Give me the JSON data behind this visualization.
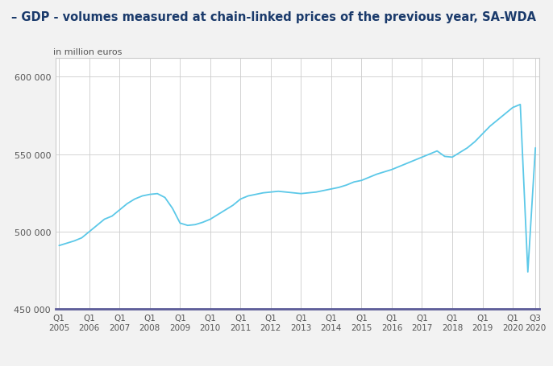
{
  "title": "– GDP - volumes measured at chain-linked prices of the previous year, SA-WDA",
  "ylabel": "in million euros",
  "background_color": "#f2f2f2",
  "plot_background": "#ffffff",
  "line_color": "#5bc8e8",
  "axis_line_color": "#5c5c99",
  "grid_color": "#cccccc",
  "title_color": "#1a3a6b",
  "label_color": "#555555",
  "ylim": [
    450000,
    612000
  ],
  "yticks": [
    450000,
    500000,
    550000,
    600000
  ],
  "ytick_labels": [
    "450 000",
    "500 000",
    "550 000",
    "600 000"
  ],
  "values": [
    491000,
    492500,
    494000,
    496000,
    500000,
    504000,
    508000,
    510000,
    514000,
    518000,
    521000,
    523000,
    524000,
    524500,
    522000,
    515000,
    505500,
    504000,
    504500,
    506000,
    508000,
    511000,
    514000,
    517000,
    521000,
    523000,
    524000,
    525000,
    525500,
    526000,
    525500,
    525000,
    524500,
    525000,
    525500,
    526500,
    527500,
    528500,
    530000,
    532000,
    533000,
    535000,
    537000,
    538500,
    540000,
    542000,
    544000,
    546000,
    548000,
    550000,
    552000,
    548500,
    548000,
    551000,
    554000,
    558000,
    563000,
    568000,
    572000,
    576000,
    580000,
    582000,
    474000,
    554000
  ],
  "xtick_positions": [
    0,
    4,
    8,
    12,
    16,
    20,
    24,
    28,
    32,
    36,
    40,
    44,
    48,
    52,
    56,
    60,
    63
  ],
  "xtick_labels": [
    "Q1\n2005",
    "Q1\n2006",
    "Q1\n2007",
    "Q1\n2008",
    "Q1\n2009",
    "Q1\n2010",
    "Q1\n2011",
    "Q1\n2012",
    "Q1\n2013",
    "Q1\n2014",
    "Q1\n2015",
    "Q1\n2016",
    "Q1\n2017",
    "Q1\n2018",
    "Q1\n2019",
    "Q1\n2020",
    "Q3\n2020"
  ],
  "border_color": "#cccccc"
}
